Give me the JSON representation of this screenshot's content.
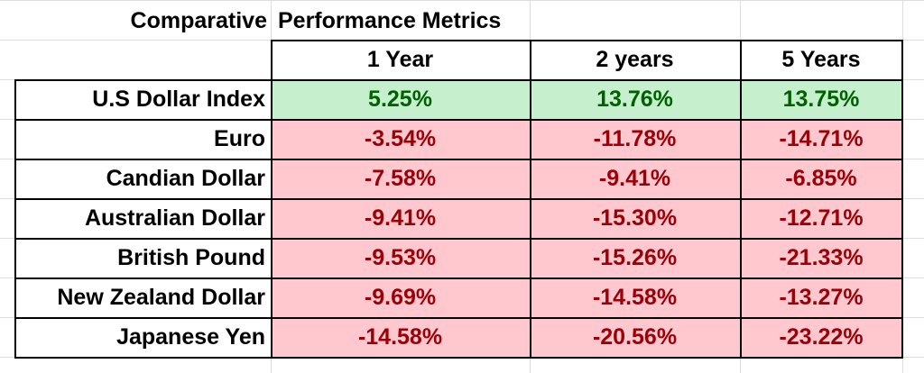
{
  "title": {
    "left": "Comparative",
    "right": "Performance Metrics"
  },
  "columns": [
    "1 Year",
    "2 years",
    "5 Years"
  ],
  "rows": [
    {
      "label": "U.S Dollar Index",
      "values": [
        "5.25%",
        "13.76%",
        "13.75%"
      ],
      "status": "positive"
    },
    {
      "label": "Euro",
      "values": [
        "-3.54%",
        "-11.78%",
        "-14.71%"
      ],
      "status": "negative"
    },
    {
      "label": "Candian Dollar",
      "values": [
        "-7.58%",
        "-9.41%",
        "-6.85%"
      ],
      "status": "negative"
    },
    {
      "label": "Australian Dollar",
      "values": [
        "-9.41%",
        "-15.30%",
        "-12.71%"
      ],
      "status": "negative"
    },
    {
      "label": "British Pound",
      "values": [
        "-9.53%",
        "-15.26%",
        "-21.33%"
      ],
      "status": "negative"
    },
    {
      "label": "New Zealand Dollar",
      "values": [
        "-9.69%",
        "-14.58%",
        "-13.27%"
      ],
      "status": "negative"
    },
    {
      "label": "Japanese Yen",
      "values": [
        "-14.58%",
        "-20.56%",
        "-23.22%"
      ],
      "status": "negative"
    }
  ],
  "colors": {
    "positive_fill": "#c6efce",
    "positive_text": "#006100",
    "negative_fill": "#ffc7ce",
    "negative_text": "#9c0006"
  }
}
